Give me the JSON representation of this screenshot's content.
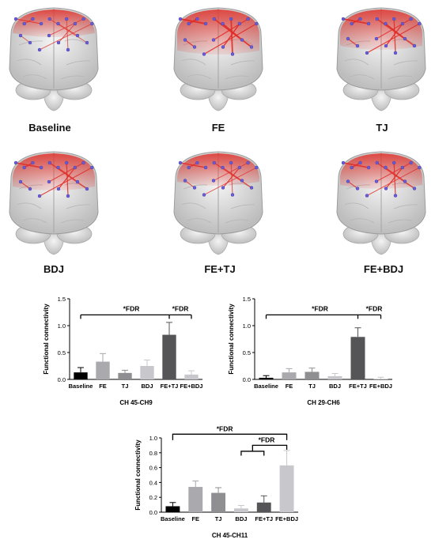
{
  "brains": [
    {
      "label": "Baseline",
      "intensity": 0.3
    },
    {
      "label": "FE",
      "intensity": 0.85
    },
    {
      "label": "TJ",
      "intensity": 0.7
    },
    {
      "label": "BDJ",
      "intensity": 0.6
    },
    {
      "label": "FE+TJ",
      "intensity": 0.45
    },
    {
      "label": "FE+BDJ",
      "intensity": 0.55
    }
  ],
  "colors": {
    "baseline": "#000000",
    "fe": "#a9a9ae",
    "tj": "#8f8f92",
    "bdj": "#c8c8cc",
    "fetj": "#555558",
    "febdj": "#c8c8cc",
    "connection": "#e0302a"
  },
  "chart_data": [
    {
      "type": "bar",
      "xlabel": "CH 45-CH9",
      "ylabel": "Functional connectivity",
      "ylim": [
        0,
        1.5
      ],
      "yticks": [
        "0.0",
        "0.5",
        "1.0",
        "1.5"
      ],
      "categories": [
        "Baseline",
        "FE",
        "TJ",
        "BDJ",
        "FE+TJ",
        "FE+BDJ"
      ],
      "values": [
        0.13,
        0.33,
        0.12,
        0.25,
        0.83,
        0.09
      ],
      "errors": [
        0.09,
        0.15,
        0.05,
        0.11,
        0.23,
        0.07
      ],
      "annotations": [
        "*FDR",
        "*FDR"
      ]
    },
    {
      "type": "bar",
      "xlabel": "CH 29-CH6",
      "ylabel": "Functional connectivity",
      "ylim": [
        0,
        1.5
      ],
      "yticks": [
        "0.0",
        "0.5",
        "1.0",
        "1.5"
      ],
      "categories": [
        "Baseline",
        "FE",
        "TJ",
        "BDJ",
        "FE+TJ",
        "FE+BDJ"
      ],
      "values": [
        0.03,
        0.13,
        0.14,
        0.06,
        0.79,
        0.01
      ],
      "errors": [
        0.04,
        0.07,
        0.07,
        0.05,
        0.17,
        0.03
      ],
      "annotations": [
        "*FDR",
        "*FDR"
      ]
    },
    {
      "type": "bar",
      "xlabel": "CH 45-CH11",
      "ylabel": "Functional connectivity",
      "ylim": [
        0,
        1.0
      ],
      "yticks": [
        "0.0",
        "0.2",
        "0.4",
        "0.6",
        "0.8",
        "1.0"
      ],
      "categories": [
        "Baseline",
        "FE",
        "TJ",
        "BDJ",
        "FE+TJ",
        "FE+BDJ"
      ],
      "values": [
        0.08,
        0.34,
        0.26,
        0.05,
        0.13,
        0.63
      ],
      "errors": [
        0.05,
        0.08,
        0.07,
        0.04,
        0.09,
        0.2
      ],
      "annotations": [
        "*FDR",
        "*FDR"
      ]
    }
  ]
}
